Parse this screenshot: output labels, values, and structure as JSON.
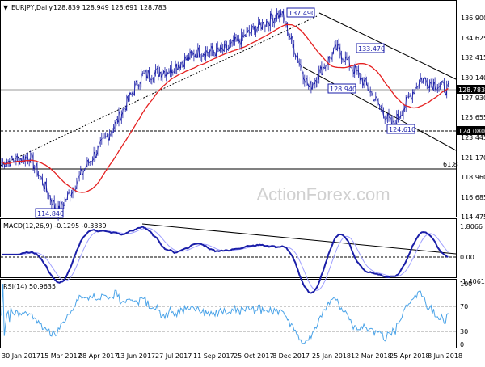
{
  "colors": {
    "background": "#ffffff",
    "candle_up": "#1e22a8",
    "candle_down": "#1e22a8",
    "ma": "#e52020",
    "macd_line": "#1a1ea8",
    "macd_signal": "#a0a0ff",
    "rsi_line": "#4aa3e8",
    "trendline": "#000000",
    "label_box_border": "#1a1ea8",
    "price_tag_bg": "#000000",
    "price_tag_fg": "#ffffff"
  },
  "price_panel": {
    "symbol_label": "EURJPY,Daily",
    "ohlc_label": "128.839 128.949 128.691 128.783",
    "y_ticks": [
      "136.900",
      "134.625",
      "132.415",
      "130.140",
      "127.930",
      "125.655",
      "123.445",
      "121.170",
      "118.960",
      "116.685",
      "114.475"
    ],
    "current_price_tag": "128.783",
    "level_tag": "124.080",
    "fib_label": "61.8",
    "annotations": [
      "137.490",
      "133.470",
      "128.940",
      "124.610",
      "114.840"
    ],
    "watermark": "ActionForex.com"
  },
  "macd_panel": {
    "label": "MACD(12,26,9) -0.1295 -0.3339",
    "y_ticks": [
      "1.8066",
      "0.00",
      "-1.4061"
    ]
  },
  "rsi_panel": {
    "label": "RSI(14) 50.9635",
    "y_ticks": [
      "100",
      "70",
      "30",
      "0"
    ]
  },
  "x_axis": {
    "ticks": [
      "30 Jan 2017",
      "15 Mar 2017",
      "28 Apr 2017",
      "13 Jun 2017",
      "27 Jul 2017",
      "11 Sep 2017",
      "25 Oct 2017",
      "8 Dec 2017",
      "25 Jan 2018",
      "12 Mar 2018",
      "25 Apr 2018",
      "8 Jun 2018"
    ]
  },
  "chart_data": {
    "type": "candlestick",
    "instrument": "EURJPY",
    "timeframe": "Daily",
    "price_ylim": [
      114.475,
      136.9
    ],
    "key_points": [
      {
        "date": "30 Jan 2017",
        "price": 120.5
      },
      {
        "date": "15 Mar 2017",
        "price": 121.2
      },
      {
        "date": "mid Apr 2017",
        "price": 114.84
      },
      {
        "date": "28 Apr 2017",
        "price": 120.0
      },
      {
        "date": "13 Jun 2017",
        "price": 124.5
      },
      {
        "date": "27 Jul 2017",
        "price": 130.3
      },
      {
        "date": "11 Sep 2017",
        "price": 131.0
      },
      {
        "date": "25 Oct 2017",
        "price": 133.0
      },
      {
        "date": "8 Dec 2017",
        "price": 133.2
      },
      {
        "date": "early Jan 2018",
        "price": 135.5
      },
      {
        "date": "25 Jan 2018",
        "price": 137.49
      },
      {
        "date": "12 Mar 2018",
        "price": 128.94
      },
      {
        "date": "late Mar 2018",
        "price": 133.47
      },
      {
        "date": "25 Apr 2018",
        "price": 129.5
      },
      {
        "date": "late May 2018",
        "price": 124.61
      },
      {
        "date": "8 Jun 2018",
        "price": 130.0
      },
      {
        "date": "end",
        "price": 128.783
      }
    ],
    "horizontal_levels": [
      124.08,
      119.9
    ],
    "macd_ylim": [
      -1.4061,
      1.8066
    ],
    "rsi_levels": [
      70,
      30
    ]
  }
}
